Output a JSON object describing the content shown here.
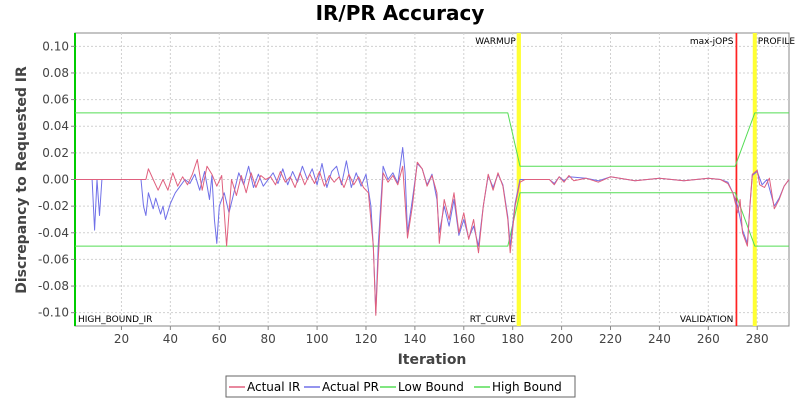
{
  "chart_data": {
    "type": "line",
    "title": "IR/PR Accuracy",
    "xlabel": "Iteration",
    "ylabel": "Discrepancy to Requested IR",
    "xlim": [
      1,
      293
    ],
    "ylim": [
      -0.11,
      0.11
    ],
    "x_ticks": [
      20,
      40,
      60,
      80,
      100,
      120,
      140,
      160,
      180,
      200,
      220,
      240,
      260,
      280
    ],
    "y_ticks": [
      0.1,
      0.08,
      0.06,
      0.04,
      0.02,
      0.0,
      -0.02,
      -0.04,
      -0.06,
      -0.08,
      -0.1
    ],
    "y_tick_labels": [
      "0.10",
      "0.08",
      "0.06",
      "0.04",
      "0.02",
      "0.00",
      "-0.02",
      "-0.04",
      "-0.06",
      "-0.08",
      "-0.10"
    ],
    "grid": true,
    "legend_position": "bottom",
    "series": [
      {
        "name": "Actual IR",
        "color": "#e0607e",
        "points": [
          [
            1,
            0
          ],
          [
            30,
            0
          ],
          [
            31,
            0.008
          ],
          [
            33,
            0
          ],
          [
            35,
            -0.008
          ],
          [
            37,
            0
          ],
          [
            39,
            -0.008
          ],
          [
            41,
            0.005
          ],
          [
            43,
            -0.005
          ],
          [
            45,
            0.002
          ],
          [
            47,
            -0.004
          ],
          [
            49,
            0.004
          ],
          [
            51,
            0.015
          ],
          [
            53,
            -0.008
          ],
          [
            55,
            0.01
          ],
          [
            57,
            0.004
          ],
          [
            59,
            -0.005
          ],
          [
            61,
            0.003
          ],
          [
            63,
            -0.05
          ],
          [
            65,
            0
          ],
          [
            67,
            -0.012
          ],
          [
            69,
            0.003
          ],
          [
            71,
            -0.01
          ],
          [
            73,
            0.005
          ],
          [
            75,
            -0.006
          ],
          [
            77,
            0.003
          ],
          [
            79,
            0
          ],
          [
            81,
            0.002
          ],
          [
            83,
            -0.004
          ],
          [
            85,
            0.006
          ],
          [
            87,
            -0.002
          ],
          [
            89,
            0.002
          ],
          [
            91,
            -0.006
          ],
          [
            93,
            0.005
          ],
          [
            95,
            -0.004
          ],
          [
            97,
            0.004
          ],
          [
            99,
            -0.003
          ],
          [
            101,
            0.006
          ],
          [
            103,
            -0.005
          ],
          [
            105,
            0.003
          ],
          [
            107,
            -0.002
          ],
          [
            109,
            0.002
          ],
          [
            111,
            -0.006
          ],
          [
            113,
            0.004
          ],
          [
            115,
            -0.004
          ],
          [
            117,
            0.002
          ],
          [
            119,
            -0.006
          ],
          [
            121,
            -0.01
          ],
          [
            123,
            -0.05
          ],
          [
            124,
            -0.102
          ],
          [
            125,
            -0.06
          ],
          [
            127,
            0.005
          ],
          [
            129,
            -0.002
          ],
          [
            131,
            0.003
          ],
          [
            133,
            -0.004
          ],
          [
            135,
            0.01
          ],
          [
            137,
            -0.044
          ],
          [
            139,
            -0.02
          ],
          [
            141,
            0.013
          ],
          [
            143,
            0.008
          ],
          [
            145,
            -0.005
          ],
          [
            147,
            0.003
          ],
          [
            149,
            -0.01
          ],
          [
            150,
            -0.048
          ],
          [
            152,
            -0.015
          ],
          [
            154,
            -0.03
          ],
          [
            156,
            -0.01
          ],
          [
            158,
            -0.04
          ],
          [
            160,
            -0.025
          ],
          [
            162,
            -0.045
          ],
          [
            164,
            -0.03
          ],
          [
            166,
            -0.055
          ],
          [
            168,
            -0.02
          ],
          [
            170,
            0.004
          ],
          [
            172,
            -0.008
          ],
          [
            174,
            0.005
          ],
          [
            176,
            -0.005
          ],
          [
            178,
            -0.03
          ],
          [
            179,
            -0.055
          ],
          [
            181,
            -0.02
          ],
          [
            183,
            -0.002
          ],
          [
            185,
            0
          ],
          [
            195,
            0
          ],
          [
            197,
            -0.004
          ],
          [
            199,
            0.002
          ],
          [
            201,
            -0.002
          ],
          [
            203,
            0.003
          ],
          [
            205,
            -0.001
          ],
          [
            210,
            0.001
          ],
          [
            215,
            -0.002
          ],
          [
            220,
            0.002
          ],
          [
            230,
            -0.001
          ],
          [
            240,
            0.001
          ],
          [
            250,
            -0.001
          ],
          [
            260,
            0.001
          ],
          [
            265,
            0
          ],
          [
            268,
            -0.003
          ],
          [
            270,
            -0.01
          ],
          [
            272,
            -0.025
          ],
          [
            273,
            -0.015
          ],
          [
            274,
            -0.04
          ],
          [
            276,
            -0.05
          ],
          [
            277,
            -0.02
          ],
          [
            278,
            0.004
          ],
          [
            280,
            0.007
          ],
          [
            281,
            -0.004
          ],
          [
            283,
            -0.006
          ],
          [
            285,
            0.001
          ],
          [
            287,
            -0.022
          ],
          [
            289,
            -0.015
          ],
          [
            291,
            -0.005
          ],
          [
            293,
            0
          ]
        ]
      },
      {
        "name": "Actual PR",
        "color": "#7070e8",
        "points": [
          [
            1,
            0
          ],
          [
            8,
            0
          ],
          [
            9,
            -0.038
          ],
          [
            10,
            0
          ],
          [
            11,
            -0.027
          ],
          [
            12,
            0
          ],
          [
            20,
            0
          ],
          [
            28,
            0
          ],
          [
            29,
            -0.02
          ],
          [
            30,
            -0.027
          ],
          [
            31,
            -0.01
          ],
          [
            33,
            -0.022
          ],
          [
            34,
            -0.014
          ],
          [
            36,
            -0.026
          ],
          [
            37,
            -0.02
          ],
          [
            38,
            -0.03
          ],
          [
            40,
            -0.018
          ],
          [
            42,
            -0.01
          ],
          [
            44,
            -0.005
          ],
          [
            46,
            0
          ],
          [
            48,
            -0.003
          ],
          [
            50,
            0.004
          ],
          [
            52,
            -0.008
          ],
          [
            54,
            0.006
          ],
          [
            56,
            -0.015
          ],
          [
            57,
            0.003
          ],
          [
            58,
            -0.03
          ],
          [
            59,
            -0.048
          ],
          [
            60,
            -0.02
          ],
          [
            62,
            -0.01
          ],
          [
            64,
            -0.025
          ],
          [
            66,
            -0.01
          ],
          [
            68,
            0.005
          ],
          [
            70,
            -0.004
          ],
          [
            72,
            0.01
          ],
          [
            74,
            -0.006
          ],
          [
            76,
            0.004
          ],
          [
            78,
            -0.005
          ],
          [
            80,
            0
          ],
          [
            82,
            0.005
          ],
          [
            84,
            -0.003
          ],
          [
            86,
            0.008
          ],
          [
            88,
            -0.004
          ],
          [
            90,
            0.006
          ],
          [
            92,
            -0.002
          ],
          [
            94,
            0.01
          ],
          [
            96,
            0
          ],
          [
            98,
            0.008
          ],
          [
            100,
            -0.004
          ],
          [
            102,
            0.012
          ],
          [
            104,
            -0.006
          ],
          [
            106,
            0.006
          ],
          [
            108,
            0.01
          ],
          [
            110,
            -0.004
          ],
          [
            112,
            0.014
          ],
          [
            114,
            -0.006
          ],
          [
            116,
            0.005
          ],
          [
            118,
            -0.005
          ],
          [
            120,
            0.004
          ],
          [
            122,
            -0.02
          ],
          [
            123,
            -0.05
          ],
          [
            124,
            -0.1
          ],
          [
            125,
            -0.05
          ],
          [
            127,
            0.01
          ],
          [
            129,
            0
          ],
          [
            131,
            0.005
          ],
          [
            133,
            -0.003
          ],
          [
            135,
            0.024
          ],
          [
            136,
            0.005
          ],
          [
            137,
            -0.04
          ],
          [
            139,
            -0.015
          ],
          [
            141,
            0.012
          ],
          [
            143,
            0.008
          ],
          [
            145,
            -0.004
          ],
          [
            147,
            0.004
          ],
          [
            149,
            -0.015
          ],
          [
            150,
            -0.04
          ],
          [
            152,
            -0.02
          ],
          [
            154,
            -0.035
          ],
          [
            156,
            -0.015
          ],
          [
            158,
            -0.042
          ],
          [
            160,
            -0.03
          ],
          [
            162,
            -0.044
          ],
          [
            164,
            -0.035
          ],
          [
            166,
            -0.05
          ],
          [
            168,
            -0.02
          ],
          [
            170,
            0.003
          ],
          [
            172,
            -0.006
          ],
          [
            174,
            0.004
          ],
          [
            176,
            -0.004
          ],
          [
            178,
            -0.028
          ],
          [
            179,
            -0.05
          ],
          [
            181,
            -0.018
          ],
          [
            183,
            0
          ],
          [
            195,
            0
          ],
          [
            197,
            -0.003
          ],
          [
            199,
            0.002
          ],
          [
            201,
            -0.001
          ],
          [
            203,
            0.002
          ],
          [
            210,
            0.001
          ],
          [
            215,
            -0.001
          ],
          [
            220,
            0.002
          ],
          [
            230,
            -0.001
          ],
          [
            240,
            0.001
          ],
          [
            250,
            -0.001
          ],
          [
            260,
            0.001
          ],
          [
            265,
            0
          ],
          [
            268,
            -0.002
          ],
          [
            270,
            -0.01
          ],
          [
            272,
            -0.02
          ],
          [
            274,
            -0.038
          ],
          [
            276,
            -0.048
          ],
          [
            277,
            -0.02
          ],
          [
            278,
            0.003
          ],
          [
            280,
            0.006
          ],
          [
            282,
            -0.004
          ],
          [
            284,
            0
          ],
          [
            287,
            -0.02
          ],
          [
            289,
            -0.014
          ],
          [
            291,
            -0.005
          ],
          [
            293,
            0
          ]
        ]
      },
      {
        "name": "Low Bound",
        "color": "#55dd55",
        "points": [
          [
            1,
            -0.05
          ],
          [
            178,
            -0.05
          ],
          [
            183,
            -0.01
          ],
          [
            271,
            -0.01
          ],
          [
            279,
            -0.05
          ],
          [
            293,
            -0.05
          ]
        ]
      },
      {
        "name": "High Bound",
        "color": "#55dd55",
        "points": [
          [
            1,
            0.05
          ],
          [
            178,
            0.05
          ],
          [
            183,
            0.01
          ],
          [
            271,
            0.01
          ],
          [
            279,
            0.05
          ],
          [
            293,
            0.05
          ]
        ]
      }
    ],
    "markers": [
      {
        "label": "HIGH_BOUND_IR",
        "x": 1,
        "color": "#00cc00",
        "label_side": "right",
        "label_pos": "bottom"
      },
      {
        "label": "WARMUP",
        "x": 182.5,
        "color": "#ffff33",
        "label_side": "left",
        "label_pos": "top"
      },
      {
        "label": "RT_CURVE",
        "x": 182.5,
        "color": "#ffff33",
        "label_side": "left",
        "label_pos": "bottom"
      },
      {
        "label": "max-jOPS",
        "x": 271.5,
        "color": "#ff2222",
        "label_side": "left",
        "label_pos": "top"
      },
      {
        "label": "VALIDATION",
        "x": 271.5,
        "color": "#ff2222",
        "label_side": "left",
        "label_pos": "bottom"
      },
      {
        "label": "PROFILE",
        "x": 279,
        "color": "#ffff33",
        "label_side": "right",
        "label_pos": "top"
      }
    ]
  }
}
